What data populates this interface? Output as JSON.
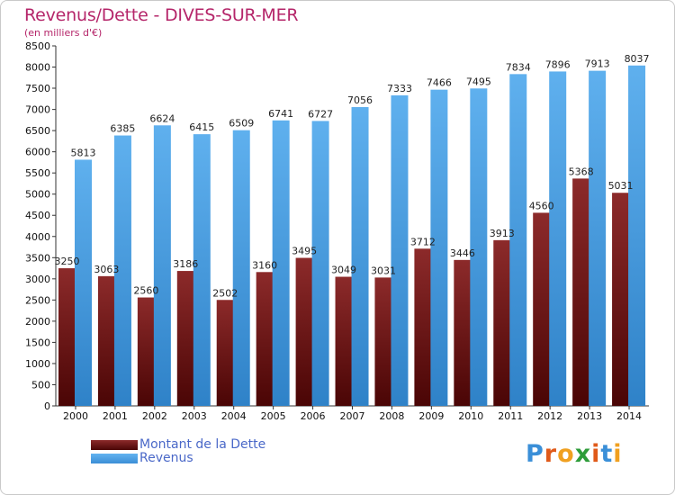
{
  "header": {
    "title": "Revenus/Dette - DIVES-SUR-MER",
    "subtitle": "(en milliers d'€)"
  },
  "colors": {
    "title": "#b5266a",
    "debt": "#7a1a1a",
    "revenue": "#4ea3e6",
    "legend_text": "#4a68c8"
  },
  "chart_data": {
    "type": "bar",
    "title": "Revenus/Dette - DIVES-SUR-MER",
    "ylabel": "(en milliers d'€)",
    "xlabel": "",
    "categories": [
      "2000",
      "2001",
      "2002",
      "2003",
      "2004",
      "2005",
      "2006",
      "2007",
      "2008",
      "2009",
      "2010",
      "2011",
      "2012",
      "2013",
      "2014"
    ],
    "series": [
      {
        "name": "Montant de la Dette",
        "values": [
          3250,
          3063,
          2560,
          3186,
          2502,
          3160,
          3495,
          3049,
          3031,
          3712,
          3446,
          3913,
          4560,
          5368,
          5031
        ],
        "labels": [
          "3250",
          "3063",
          "2560",
          "3186",
          "2502",
          "3160",
          "3495",
          "3049",
          "3031",
          "3712",
          "3446",
          "3913",
          "4560",
          "5368",
          "5031"
        ]
      },
      {
        "name": "Revenus",
        "values": [
          5813,
          6385,
          6624,
          6415,
          6509,
          6741,
          6727,
          7056,
          7333,
          7466,
          7495,
          7834,
          7896,
          7913,
          8037
        ],
        "labels": [
          "5813",
          "6385",
          "6624",
          "6415",
          "6509",
          "6741",
          "6727",
          "7056",
          "7333",
          "7466",
          "7495",
          "7834",
          "7896",
          "7913",
          "8037"
        ]
      }
    ],
    "ylim": [
      0,
      8500
    ],
    "yticks": [
      "0",
      "500",
      "1000",
      "1500",
      "2000",
      "2500",
      "3000",
      "3500",
      "4000",
      "4500",
      "5000",
      "5500",
      "6000",
      "6500",
      "7000",
      "7500",
      "8000",
      "8500"
    ],
    "grid": false,
    "legend": "bottom-left"
  },
  "legend": {
    "items": [
      {
        "label": "Montant de la Dette"
      },
      {
        "label": "Revenus"
      }
    ]
  },
  "logo": {
    "text": "Proxiti"
  }
}
